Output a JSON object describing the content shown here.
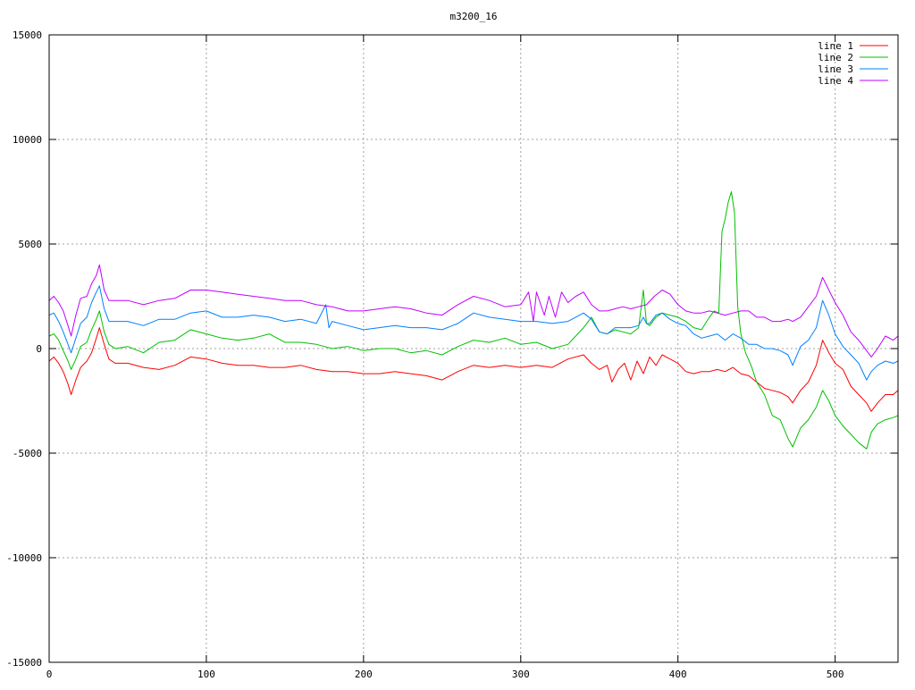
{
  "chart_data": {
    "type": "line",
    "title": "m3200_16",
    "xlabel": "",
    "ylabel": "",
    "xlim": [
      0,
      540
    ],
    "ylim": [
      -15000,
      15000
    ],
    "xticks": [
      0,
      100,
      200,
      300,
      400,
      500
    ],
    "yticks": [
      -15000,
      -10000,
      -5000,
      0,
      5000,
      10000,
      15000
    ],
    "grid": true,
    "legend_position": "top-right",
    "series": [
      {
        "name": "line 1",
        "color": "#ff0000",
        "x": [
          0,
          3,
          6,
          9,
          12,
          14,
          17,
          20,
          24,
          27,
          30,
          32,
          35,
          38,
          42,
          50,
          60,
          70,
          80,
          90,
          100,
          110,
          120,
          130,
          140,
          150,
          160,
          170,
          180,
          190,
          200,
          210,
          220,
          230,
          240,
          250,
          260,
          270,
          280,
          290,
          300,
          310,
          320,
          330,
          340,
          345,
          350,
          355,
          358,
          362,
          366,
          370,
          374,
          378,
          382,
          386,
          390,
          395,
          400,
          405,
          410,
          415,
          420,
          425,
          430,
          435,
          440,
          445,
          450,
          455,
          460,
          465,
          470,
          473,
          478,
          483,
          488,
          492,
          496,
          500,
          505,
          510,
          515,
          520,
          523,
          527,
          532,
          537,
          540
        ],
        "y": [
          -600,
          -400,
          -700,
          -1100,
          -1700,
          -2200,
          -1500,
          -900,
          -600,
          -200,
          500,
          1000,
          200,
          -500,
          -700,
          -700,
          -900,
          -1000,
          -800,
          -400,
          -500,
          -700,
          -800,
          -800,
          -900,
          -900,
          -800,
          -1000,
          -1100,
          -1100,
          -1200,
          -1200,
          -1100,
          -1200,
          -1300,
          -1500,
          -1100,
          -800,
          -900,
          -800,
          -900,
          -800,
          -900,
          -500,
          -300,
          -700,
          -1000,
          -800,
          -1600,
          -1000,
          -700,
          -1500,
          -600,
          -1200,
          -400,
          -800,
          -300,
          -500,
          -700,
          -1100,
          -1200,
          -1100,
          -1100,
          -1000,
          -1100,
          -900,
          -1200,
          -1300,
          -1600,
          -1900,
          -2000,
          -2100,
          -2300,
          -2600,
          -2000,
          -1600,
          -800,
          400,
          -200,
          -700,
          -1000,
          -1800,
          -2200,
          -2600,
          -3000,
          -2600,
          -2200,
          -2200,
          -2000
        ]
      },
      {
        "name": "line 2",
        "color": "#00c000",
        "x": [
          0,
          3,
          6,
          9,
          12,
          14,
          17,
          20,
          24,
          27,
          30,
          32,
          35,
          38,
          42,
          50,
          60,
          70,
          80,
          90,
          100,
          110,
          120,
          130,
          140,
          150,
          160,
          170,
          180,
          190,
          200,
          210,
          220,
          230,
          240,
          250,
          260,
          270,
          280,
          290,
          300,
          310,
          320,
          330,
          340,
          345,
          350,
          355,
          360,
          365,
          370,
          375,
          378,
          380,
          382,
          386,
          390,
          395,
          400,
          405,
          410,
          415,
          420,
          423,
          426,
          428,
          430,
          432,
          434,
          436,
          438,
          440,
          443,
          447,
          450,
          455,
          460,
          465,
          470,
          473,
          478,
          483,
          488,
          492,
          496,
          500,
          505,
          510,
          515,
          520,
          523,
          527,
          532,
          537,
          540
        ],
        "y": [
          600,
          700,
          400,
          -100,
          -600,
          -1000,
          -500,
          100,
          300,
          900,
          1400,
          1800,
          800,
          200,
          0,
          100,
          -200,
          300,
          400,
          900,
          700,
          500,
          400,
          500,
          700,
          300,
          300,
          200,
          0,
          100,
          -100,
          0,
          0,
          -200,
          -100,
          -300,
          100,
          400,
          300,
          500,
          200,
          300,
          0,
          200,
          1000,
          1500,
          800,
          700,
          900,
          800,
          700,
          1000,
          2800,
          1200,
          1100,
          1500,
          1700,
          1600,
          1500,
          1300,
          1000,
          900,
          1500,
          1800,
          1700,
          5600,
          6200,
          7000,
          7500,
          6500,
          2000,
          700,
          -200,
          -900,
          -1600,
          -2200,
          -3200,
          -3400,
          -4300,
          -4700,
          -3800,
          -3400,
          -2800,
          -2000,
          -2500,
          -3200,
          -3700,
          -4100,
          -4500,
          -4800,
          -4000,
          -3600,
          -3400,
          -3300,
          -3200
        ]
      },
      {
        "name": "line 3",
        "color": "#0080ff",
        "x": [
          0,
          3,
          6,
          9,
          12,
          14,
          17,
          20,
          24,
          27,
          30,
          32,
          35,
          38,
          42,
          50,
          60,
          70,
          80,
          90,
          100,
          110,
          120,
          130,
          140,
          150,
          160,
          170,
          176,
          178,
          180,
          190,
          200,
          210,
          220,
          230,
          240,
          250,
          260,
          270,
          280,
          290,
          300,
          310,
          320,
          330,
          340,
          345,
          350,
          355,
          360,
          365,
          370,
          375,
          378,
          380,
          382,
          386,
          390,
          395,
          400,
          405,
          410,
          415,
          420,
          425,
          430,
          435,
          440,
          445,
          450,
          455,
          460,
          465,
          470,
          473,
          478,
          483,
          488,
          492,
          496,
          500,
          505,
          510,
          515,
          520,
          523,
          527,
          532,
          537,
          540
        ],
        "y": [
          1600,
          1700,
          1300,
          800,
          200,
          -200,
          500,
          1200,
          1500,
          2200,
          2700,
          3000,
          1900,
          1300,
          1300,
          1300,
          1100,
          1400,
          1400,
          1700,
          1800,
          1500,
          1500,
          1600,
          1500,
          1300,
          1400,
          1200,
          2100,
          1000,
          1300,
          1100,
          900,
          1000,
          1100,
          1000,
          1000,
          900,
          1200,
          1700,
          1500,
          1400,
          1300,
          1300,
          1200,
          1300,
          1700,
          1400,
          800,
          700,
          1000,
          1000,
          1000,
          1100,
          1500,
          1200,
          1200,
          1600,
          1700,
          1400,
          1200,
          1100,
          700,
          500,
          600,
          700,
          400,
          700,
          500,
          200,
          200,
          0,
          0,
          -100,
          -300,
          -800,
          100,
          400,
          1000,
          2300,
          1600,
          700,
          100,
          -300,
          -700,
          -1500,
          -1100,
          -800,
          -600,
          -700,
          -600
        ]
      },
      {
        "name": "line 4",
        "color": "#c000ff",
        "x": [
          0,
          3,
          6,
          9,
          12,
          14,
          17,
          20,
          24,
          27,
          30,
          32,
          35,
          38,
          42,
          50,
          60,
          70,
          80,
          90,
          100,
          110,
          120,
          130,
          140,
          150,
          160,
          170,
          180,
          190,
          200,
          210,
          220,
          230,
          240,
          250,
          260,
          270,
          280,
          290,
          300,
          305,
          308,
          310,
          315,
          318,
          322,
          326,
          330,
          335,
          340,
          345,
          350,
          355,
          360,
          365,
          370,
          375,
          380,
          385,
          390,
          395,
          400,
          405,
          410,
          415,
          420,
          425,
          430,
          435,
          440,
          445,
          450,
          455,
          460,
          465,
          470,
          473,
          478,
          483,
          488,
          492,
          496,
          500,
          505,
          510,
          515,
          520,
          523,
          527,
          532,
          537,
          540
        ],
        "y": [
          2300,
          2500,
          2200,
          1800,
          1100,
          600,
          1600,
          2400,
          2500,
          3100,
          3500,
          4000,
          2800,
          2300,
          2300,
          2300,
          2100,
          2300,
          2400,
          2800,
          2800,
          2700,
          2600,
          2500,
          2400,
          2300,
          2300,
          2100,
          2000,
          1800,
          1800,
          1900,
          2000,
          1900,
          1700,
          1600,
          2100,
          2500,
          2300,
          2000,
          2100,
          2700,
          1300,
          2700,
          1600,
          2500,
          1500,
          2700,
          2200,
          2500,
          2700,
          2100,
          1800,
          1800,
          1900,
          2000,
          1900,
          2000,
          2100,
          2500,
          2800,
          2600,
          2100,
          1800,
          1700,
          1700,
          1800,
          1700,
          1600,
          1700,
          1800,
          1800,
          1500,
          1500,
          1300,
          1300,
          1400,
          1300,
          1500,
          2000,
          2500,
          3400,
          2800,
          2200,
          1600,
          800,
          400,
          -100,
          -400,
          0,
          600,
          400,
          600
        ]
      }
    ]
  }
}
